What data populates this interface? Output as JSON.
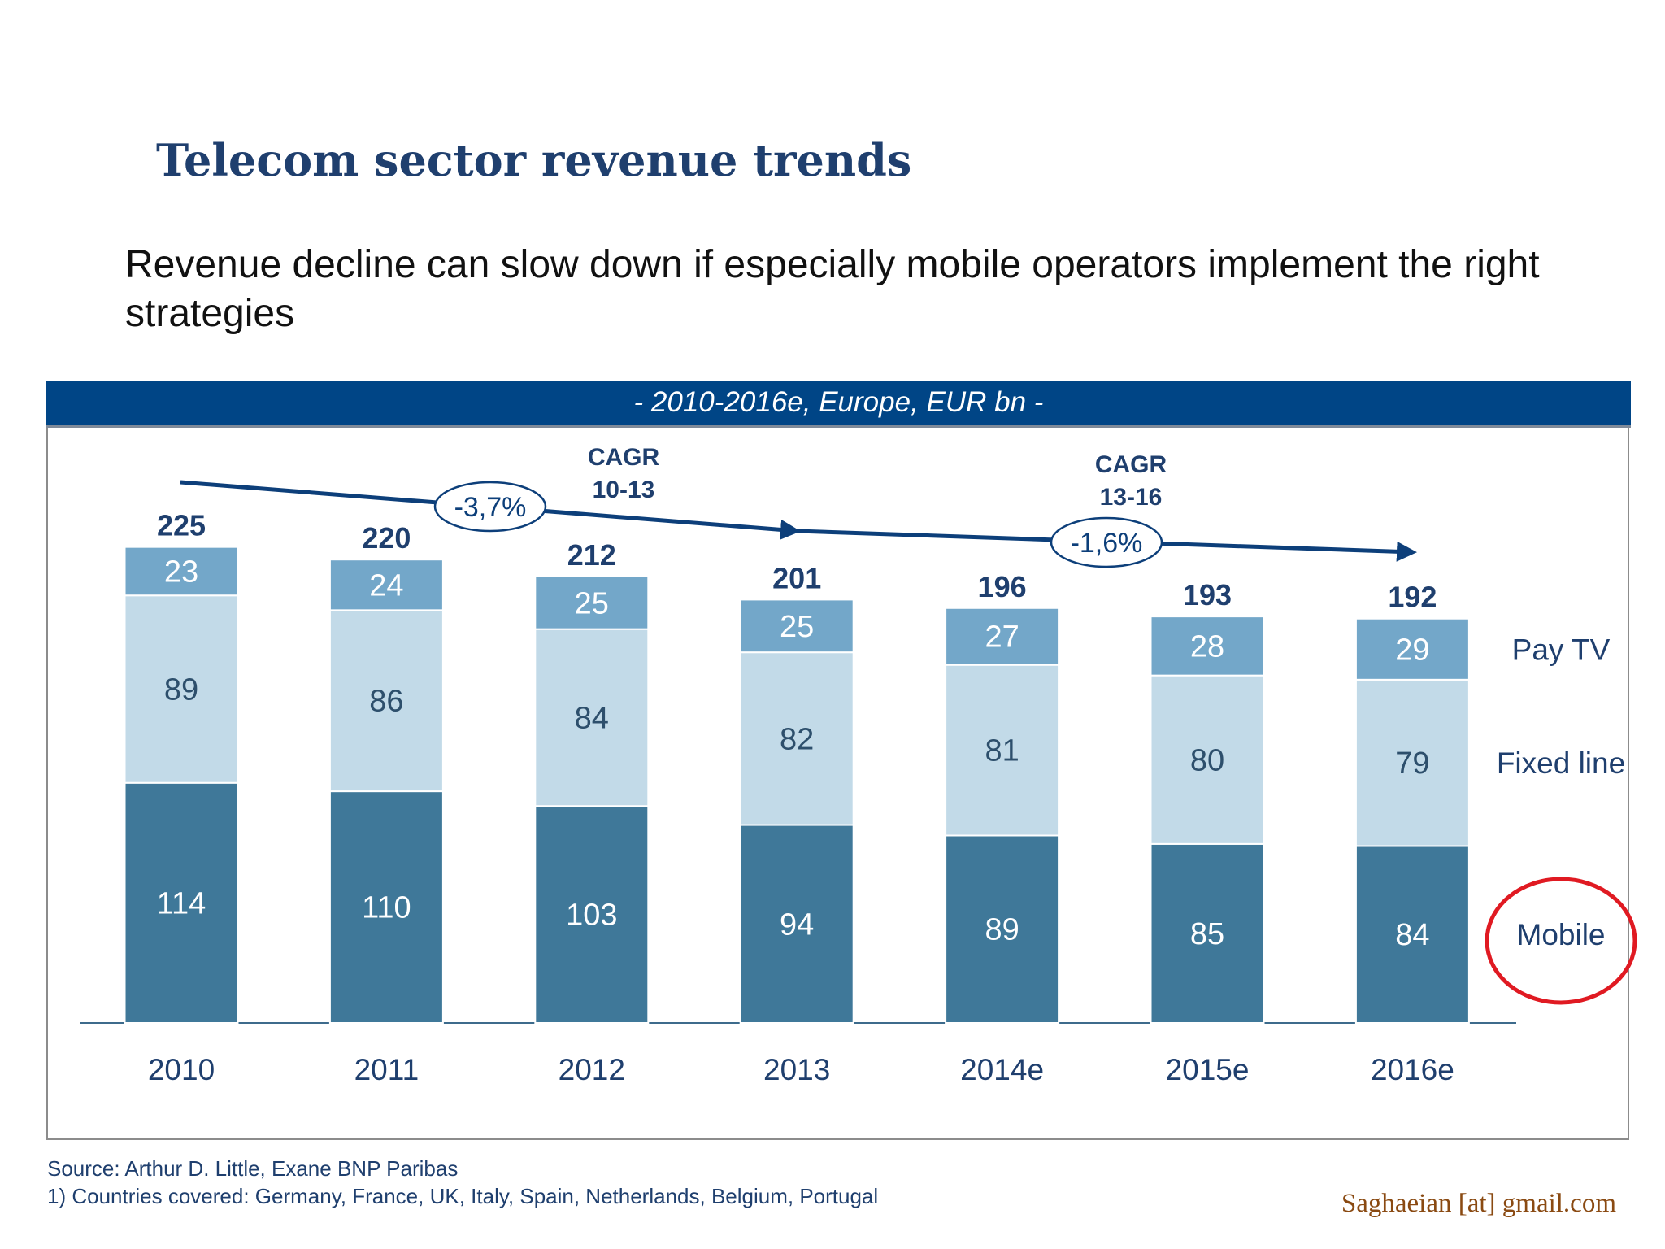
{
  "title": "Telecom sector revenue trends",
  "subtitle": "Revenue decline can slow down if especially mobile operators implement the right strategies",
  "chart_data": {
    "type": "bar",
    "stacked": true,
    "title": "- 2010-2016e, Europe, EUR bn -",
    "categories": [
      "2010",
      "2011",
      "2012",
      "2013",
      "2014e",
      "2015e",
      "2016e"
    ],
    "series": [
      {
        "name": "Mobile",
        "values": [
          114,
          110,
          103,
          94,
          89,
          85,
          84
        ],
        "color": "#3f7899"
      },
      {
        "name": "Fixed line",
        "values": [
          89,
          86,
          84,
          82,
          81,
          80,
          79
        ],
        "color": "#c2dae8"
      },
      {
        "name": "Pay TV",
        "values": [
          23,
          24,
          25,
          25,
          27,
          28,
          29
        ],
        "color": "#73a7c9"
      }
    ],
    "totals": [
      225,
      220,
      212,
      201,
      196,
      193,
      192
    ],
    "annotations": [
      {
        "label": "CAGR",
        "period": "10-13",
        "value": "-3,7%"
      },
      {
        "label": "CAGR",
        "period": "13-16",
        "value": "-1,6%"
      }
    ],
    "highlighted_series": "Mobile",
    "highlight_color": "#e01a22",
    "header_color": "#004586",
    "legend_position": "right",
    "grid": false
  },
  "footer": {
    "source": "Source: Arthur D. Little, Exane BNP Paribas",
    "note": "1) Countries covered: Germany, France, UK, Italy, Spain, Netherlands, Belgium, Portugal"
  },
  "watermark": "Saghaeian [at] gmail.com"
}
